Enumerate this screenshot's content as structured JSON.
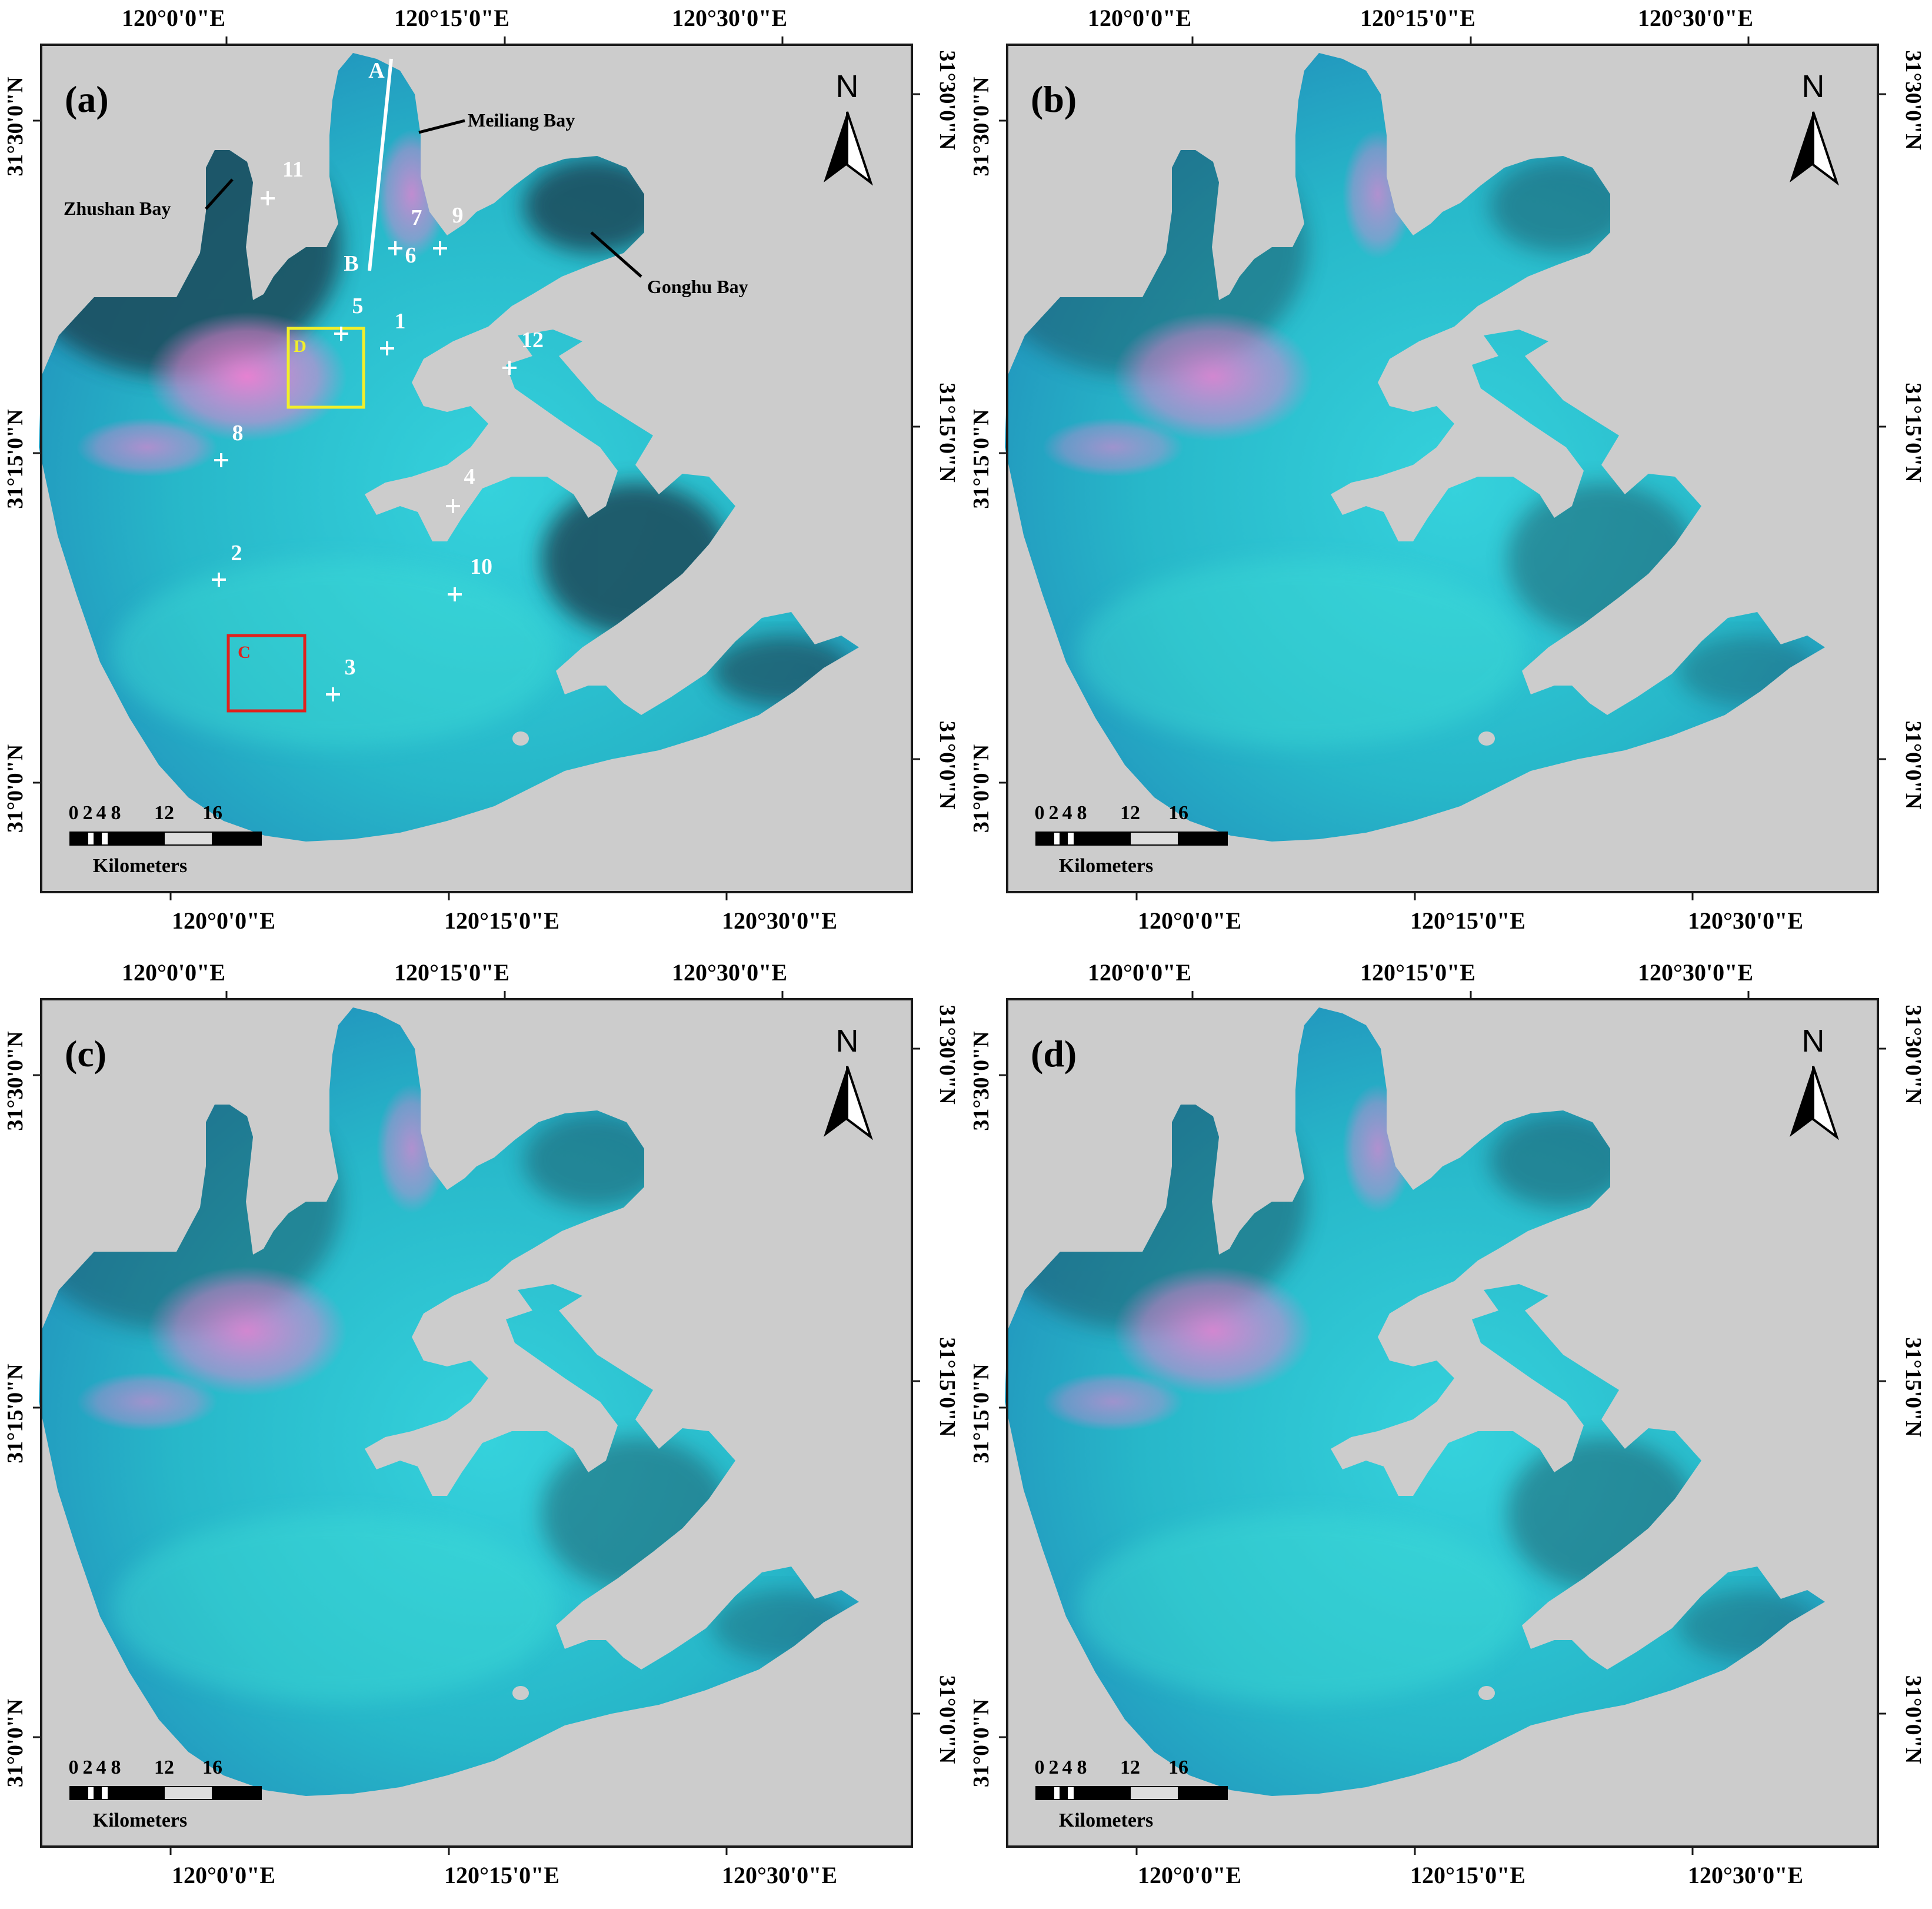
{
  "colors": {
    "background_gray": "#cccccc",
    "water_cyan": "#27b7c9",
    "water_blue": "#1f86b8",
    "bloom_pink": "#f07fd2",
    "vegetation_dark": "#1a4a5a",
    "frame_black": "#1a1a1a",
    "box_d_yellow": "#f2ef2a",
    "box_c_red": "#e0211d",
    "label_white": "#ffffff"
  },
  "axes": {
    "x_ticks": [
      "120°0'0\"E",
      "120°15'0\"E",
      "120°30'0\"E"
    ],
    "y_ticks": [
      "31°0'0\"N",
      "31°15'0\"N",
      "31°30'0\"N"
    ]
  },
  "north_arrow": {
    "label": "N"
  },
  "scale_bar": {
    "ticks": [
      "0",
      "2",
      "4",
      "8",
      "12",
      "16"
    ],
    "unit": "Kilometers"
  },
  "panels": [
    {
      "id": "a",
      "label": "(a)"
    },
    {
      "id": "b",
      "label": "(b)"
    },
    {
      "id": "c",
      "label": "(c)"
    },
    {
      "id": "d",
      "label": "(d)"
    }
  ],
  "annotations": {
    "bays": [
      "Meiliang Bay",
      "Zhushan Bay",
      "Gonghu Bay"
    ],
    "transect": {
      "start": "A",
      "end": "B"
    },
    "boxes": {
      "yellow": "D",
      "red": "C"
    },
    "stations": [
      "1",
      "2",
      "3",
      "4",
      "5",
      "6",
      "7",
      "8",
      "9",
      "10",
      "11",
      "12"
    ]
  }
}
